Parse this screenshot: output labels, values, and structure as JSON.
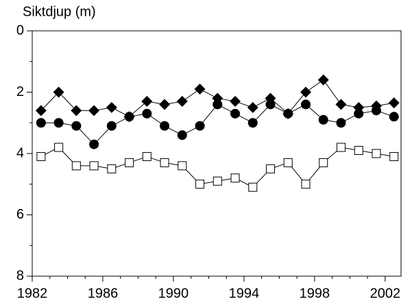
{
  "chart_data": {
    "type": "line",
    "title": "Siktdjup (m)",
    "x": [
      1982.5,
      1983.5,
      1984.5,
      1985.5,
      1986.5,
      1987.5,
      1988.5,
      1989.5,
      1990.5,
      1991.5,
      1992.5,
      1993.5,
      1994.5,
      1995.5,
      1996.5,
      1997.5,
      1998.5,
      1999.5,
      2000.5,
      2001.5,
      2002.5
    ],
    "series": [
      {
        "color": "#000000",
        "marker": "diamond",
        "values": [
          2.6,
          2.0,
          2.6,
          2.6,
          2.5,
          2.8,
          2.3,
          2.4,
          2.3,
          1.9,
          2.2,
          2.3,
          2.5,
          2.2,
          2.7,
          2.0,
          1.6,
          2.4,
          2.5,
          2.45,
          2.35
        ]
      },
      {
        "color": "#000000",
        "marker": "circle",
        "values": [
          3.0,
          3.0,
          3.1,
          3.7,
          3.1,
          2.8,
          2.7,
          3.1,
          3.4,
          3.1,
          2.4,
          2.7,
          3.0,
          2.4,
          2.7,
          2.4,
          2.9,
          3.0,
          2.7,
          2.6,
          2.8
        ]
      },
      {
        "color": "#000000",
        "marker": "open-square",
        "values": [
          4.1,
          3.8,
          4.4,
          4.4,
          4.5,
          4.3,
          4.1,
          4.3,
          4.4,
          5.0,
          4.9,
          4.8,
          5.1,
          4.5,
          4.3,
          5.0,
          4.3,
          3.8,
          3.9,
          4.0,
          4.1
        ]
      }
    ],
    "xlim": [
      1982,
      2002.9
    ],
    "xticks": [
      1982,
      1986,
      1990,
      1994,
      1998,
      2002
    ],
    "xminorticks": [
      1983,
      1984,
      1985,
      1987,
      1988,
      1989,
      1991,
      1992,
      1993,
      1995,
      1996,
      1997,
      1999,
      2000,
      2001
    ],
    "ylim": [
      0,
      8
    ],
    "y_inverted": true,
    "yticks": [
      0,
      2,
      4,
      6,
      8
    ],
    "yminorticks": [
      1,
      3,
      5,
      7
    ]
  }
}
